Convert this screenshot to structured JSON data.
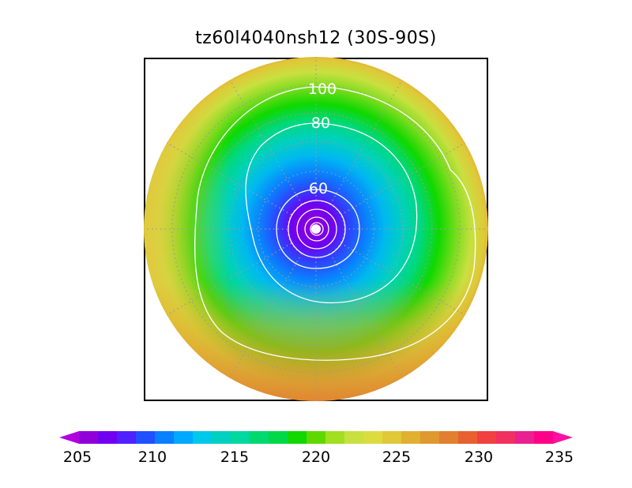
{
  "title": "tz60l4040nsh12 (30S-90S)",
  "colorbar": {
    "tick_labels": [
      "205",
      "210",
      "215",
      "220",
      "225",
      "230",
      "235"
    ],
    "colors": [
      "#9000d8",
      "#7000f0",
      "#5020ff",
      "#2050ff",
      "#0a80ff",
      "#00a8ff",
      "#00c8e8",
      "#00d0c0",
      "#00d8a0",
      "#00d870",
      "#00d848",
      "#10d800",
      "#60d800",
      "#a0e020",
      "#c8e040",
      "#dcdc40",
      "#e0c838",
      "#e0b030",
      "#e09830",
      "#e08030",
      "#e86030",
      "#f04040",
      "#f03060",
      "#e82090",
      "#ff0088"
    ],
    "left_extension_color": "#b000e0",
    "right_extension_color": "#ff10a0"
  },
  "contour_labels": [
    "100",
    "80",
    "60"
  ],
  "map": {
    "projection": "polar-stereographic-south",
    "extent": "30S-90S"
  }
}
